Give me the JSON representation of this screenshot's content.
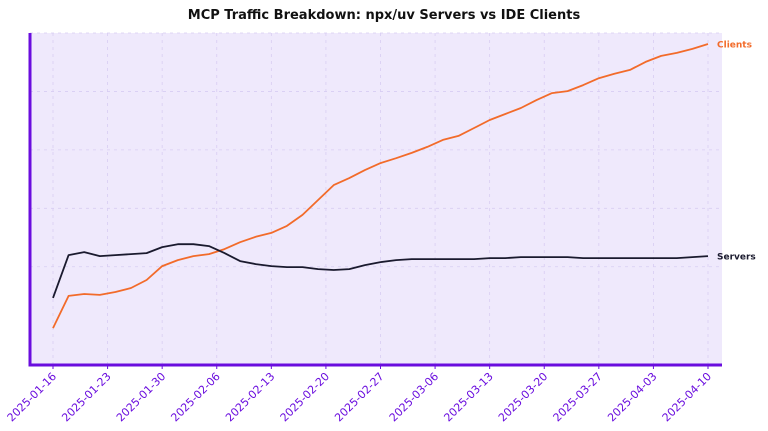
{
  "chart_data": {
    "type": "line",
    "title": "MCP Traffic Breakdown: npx/uv Servers vs IDE Clients",
    "xlabel": "",
    "ylabel": "",
    "ylim": [
      0,
      100
    ],
    "y_axis_labels_shown": false,
    "grid": true,
    "x_tick_labels": [
      "2025-01-16",
      "2025-01-23",
      "2025-01-30",
      "2025-02-06",
      "2025-02-13",
      "2025-02-20",
      "2025-02-27",
      "2025-03-06",
      "2025-03-13",
      "2025-03-20",
      "2025-03-27",
      "2025-04-03",
      "2025-04-10"
    ],
    "x": [
      "2025-01-16",
      "2025-01-18",
      "2025-01-20",
      "2025-01-22",
      "2025-01-24",
      "2025-01-26",
      "2025-01-28",
      "2025-01-30",
      "2025-02-01",
      "2025-02-03",
      "2025-02-05",
      "2025-02-07",
      "2025-02-09",
      "2025-02-11",
      "2025-02-13",
      "2025-02-15",
      "2025-02-17",
      "2025-02-19",
      "2025-02-21",
      "2025-02-23",
      "2025-02-25",
      "2025-02-27",
      "2025-03-01",
      "2025-03-03",
      "2025-03-05",
      "2025-03-07",
      "2025-03-09",
      "2025-03-11",
      "2025-03-13",
      "2025-03-15",
      "2025-03-17",
      "2025-03-19",
      "2025-03-21",
      "2025-03-23",
      "2025-03-25",
      "2025-03-27",
      "2025-03-29",
      "2025-03-31",
      "2025-04-02",
      "2025-04-04",
      "2025-04-06",
      "2025-04-08",
      "2025-04-10"
    ],
    "series": [
      {
        "name": "Clients",
        "color": "#f26b2a",
        "values": [
          11.1,
          20.8,
          21.4,
          21.1,
          22.0,
          23.2,
          25.6,
          29.8,
          31.6,
          32.8,
          33.4,
          34.9,
          37.0,
          38.6,
          39.8,
          41.9,
          45.2,
          49.7,
          54.2,
          56.3,
          58.7,
          60.8,
          62.3,
          63.9,
          65.7,
          67.8,
          69.0,
          71.4,
          73.8,
          75.6,
          77.4,
          79.8,
          81.9,
          82.5,
          84.3,
          86.4,
          87.7,
          88.9,
          91.3,
          93.1,
          94.0,
          95.2,
          96.7
        ]
      },
      {
        "name": "Servers",
        "color": "#1a1a2e",
        "values": [
          20.2,
          33.1,
          34.0,
          32.8,
          33.1,
          33.4,
          33.7,
          35.5,
          36.4,
          36.4,
          35.8,
          33.7,
          31.3,
          30.4,
          29.8,
          29.5,
          29.5,
          28.9,
          28.6,
          28.9,
          30.1,
          31.0,
          31.6,
          31.9,
          31.9,
          31.9,
          31.9,
          31.9,
          32.2,
          32.2,
          32.5,
          32.5,
          32.5,
          32.5,
          32.2,
          32.2,
          32.2,
          32.2,
          32.2,
          32.2,
          32.2,
          32.5,
          32.8
        ]
      }
    ],
    "legend": "inline-end-labels",
    "colors": {
      "axis": "#6a0dde",
      "background": "#efe9fc",
      "tick_label": "#6a0dde"
    }
  }
}
